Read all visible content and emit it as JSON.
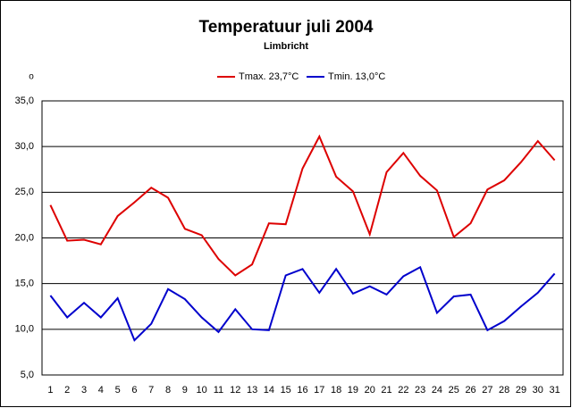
{
  "chart_data": {
    "type": "line",
    "title": "Temperatuur juli 2004",
    "subtitle": "Limbricht",
    "y_axis_label": "o",
    "categories": [
      "1",
      "2",
      "3",
      "4",
      "5",
      "6",
      "7",
      "8",
      "9",
      "10",
      "11",
      "12",
      "13",
      "14",
      "15",
      "16",
      "17",
      "18",
      "19",
      "20",
      "21",
      "22",
      "23",
      "24",
      "25",
      "26",
      "27",
      "28",
      "29",
      "30",
      "31"
    ],
    "series": [
      {
        "name": "Tmax. 23,7°C",
        "color": "#dd0000",
        "values": [
          23.6,
          19.7,
          19.8,
          19.3,
          22.4,
          23.9,
          25.5,
          24.4,
          21.0,
          20.3,
          17.7,
          15.9,
          17.1,
          21.6,
          21.5,
          27.6,
          31.1,
          26.7,
          25.1,
          20.4,
          27.2,
          29.3,
          26.8,
          25.2,
          20.1,
          21.6,
          25.3,
          26.3,
          28.3,
          30.6,
          28.5
        ]
      },
      {
        "name": "Tmin. 13,0°C",
        "color": "#0000cc",
        "values": [
          13.7,
          11.3,
          12.9,
          11.3,
          13.4,
          8.8,
          10.6,
          14.4,
          13.3,
          11.3,
          9.7,
          12.2,
          10.0,
          9.9,
          15.9,
          16.6,
          14.0,
          16.6,
          13.9,
          14.7,
          13.8,
          15.8,
          16.8,
          11.8,
          13.6,
          13.8,
          9.9,
          10.9,
          12.5,
          14.0,
          16.1
        ]
      }
    ],
    "ylim": [
      5,
      35
    ],
    "yticks": [
      {
        "value": 5,
        "label": "5,0"
      },
      {
        "value": 10,
        "label": "10,0"
      },
      {
        "value": 15,
        "label": "15,0"
      },
      {
        "value": 20,
        "label": "20,0"
      },
      {
        "value": 25,
        "label": "25,0"
      },
      {
        "value": 30,
        "label": "30,0"
      },
      {
        "value": 35,
        "label": "35,0"
      }
    ],
    "grid": true,
    "legend": "top"
  }
}
